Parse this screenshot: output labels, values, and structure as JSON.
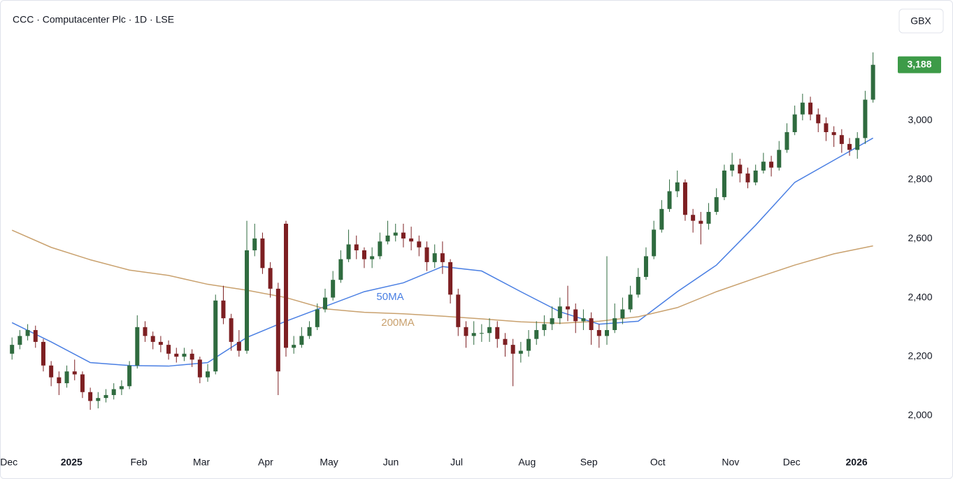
{
  "chart_data": {
    "type": "candlestick",
    "title": "CCC · Computacenter Plc · 1D · LSE",
    "currency": "GBX",
    "up_color": "#2f6b3f",
    "down_color": "#7d1f22",
    "open": [
      2210,
      2240,
      2270,
      2290,
      2250,
      2170,
      2130,
      2110,
      2150,
      2140,
      2080,
      2050,
      2060,
      2070,
      2090,
      2100,
      2170,
      2300,
      2270,
      2250,
      2240,
      2210,
      2200,
      2210,
      2190,
      2130,
      2150,
      2390,
      2330,
      2250,
      2220,
      2560,
      2600,
      2500,
      2430,
      2650,
      2230,
      2240,
      2270,
      2300,
      2360,
      2400,
      2460,
      2530,
      2580,
      2560,
      2530,
      2540,
      2590,
      2610,
      2620,
      2600,
      2590,
      2570,
      2520,
      2550,
      2520,
      2410,
      2300,
      2270,
      2280,
      2280,
      2300,
      2260,
      2240,
      2210,
      2220,
      2260,
      2290,
      2310,
      2330,
      2370,
      2360,
      2320,
      2330,
      2290,
      2270,
      2290,
      2330,
      2360,
      2410,
      2470,
      2540,
      2630,
      2700,
      2760,
      2790,
      2680,
      2660,
      2650,
      2690,
      2740,
      2830,
      2850,
      2820,
      2790,
      2830,
      2860,
      2840,
      2900,
      2960,
      3020,
      3060,
      3020,
      2990,
      2960,
      2950,
      2920,
      2900,
      2940,
      3070
    ],
    "high": [
      2265,
      2290,
      2310,
      2305,
      2260,
      2185,
      2150,
      2170,
      2190,
      2150,
      2095,
      2080,
      2090,
      2110,
      2120,
      2185,
      2340,
      2320,
      2285,
      2270,
      2255,
      2230,
      2230,
      2225,
      2200,
      2175,
      2410,
      2440,
      2345,
      2290,
      2660,
      2650,
      2620,
      2520,
      2450,
      2660,
      2270,
      2300,
      2320,
      2380,
      2430,
      2490,
      2560,
      2630,
      2610,
      2570,
      2570,
      2620,
      2660,
      2650,
      2650,
      2640,
      2610,
      2590,
      2580,
      2590,
      2530,
      2430,
      2320,
      2320,
      2310,
      2330,
      2320,
      2280,
      2260,
      2250,
      2290,
      2320,
      2340,
      2370,
      2400,
      2440,
      2380,
      2360,
      2350,
      2310,
      2540,
      2380,
      2400,
      2440,
      2500,
      2570,
      2660,
      2730,
      2800,
      2830,
      2800,
      2700,
      2690,
      2720,
      2770,
      2850,
      2890,
      2870,
      2840,
      2850,
      2890,
      2880,
      2930,
      2990,
      3050,
      3090,
      3080,
      3040,
      3010,
      2980,
      2970,
      2940,
      2960,
      3100,
      3230
    ],
    "low": [
      2190,
      2225,
      2255,
      2230,
      2150,
      2100,
      2070,
      2095,
      2120,
      2060,
      2020,
      2025,
      2045,
      2055,
      2070,
      2090,
      2160,
      2250,
      2225,
      2215,
      2190,
      2180,
      2185,
      2165,
      2110,
      2115,
      2140,
      2310,
      2220,
      2200,
      2210,
      2540,
      2480,
      2400,
      2070,
      2200,
      2210,
      2230,
      2260,
      2290,
      2350,
      2390,
      2450,
      2520,
      2530,
      2500,
      2500,
      2530,
      2580,
      2590,
      2570,
      2560,
      2540,
      2490,
      2500,
      2480,
      2380,
      2270,
      2230,
      2240,
      2250,
      2250,
      2230,
      2200,
      2100,
      2180,
      2200,
      2240,
      2270,
      2290,
      2310,
      2320,
      2280,
      2290,
      2240,
      2230,
      2240,
      2280,
      2310,
      2350,
      2400,
      2460,
      2530,
      2620,
      2690,
      2740,
      2660,
      2620,
      2580,
      2630,
      2680,
      2730,
      2810,
      2790,
      2770,
      2780,
      2820,
      2810,
      2830,
      2890,
      2950,
      3000,
      3000,
      2960,
      2930,
      2910,
      2890,
      2880,
      2870,
      2920,
      3060
    ],
    "close": [
      2240,
      2270,
      2290,
      2250,
      2170,
      2130,
      2110,
      2150,
      2140,
      2080,
      2050,
      2060,
      2070,
      2090,
      2100,
      2170,
      2300,
      2270,
      2250,
      2240,
      2210,
      2200,
      2210,
      2190,
      2130,
      2150,
      2390,
      2330,
      2250,
      2220,
      2560,
      2600,
      2500,
      2430,
      2150,
      2230,
      2240,
      2270,
      2300,
      2360,
      2400,
      2460,
      2530,
      2580,
      2560,
      2530,
      2540,
      2590,
      2610,
      2620,
      2600,
      2590,
      2570,
      2520,
      2550,
      2520,
      2410,
      2300,
      2270,
      2280,
      2280,
      2300,
      2260,
      2240,
      2210,
      2220,
      2260,
      2290,
      2310,
      2330,
      2370,
      2360,
      2320,
      2330,
      2290,
      2270,
      2290,
      2330,
      2360,
      2410,
      2470,
      2540,
      2630,
      2700,
      2760,
      2790,
      2680,
      2660,
      2650,
      2690,
      2740,
      2830,
      2850,
      2820,
      2790,
      2830,
      2860,
      2840,
      2900,
      2960,
      3020,
      3060,
      3020,
      2990,
      2960,
      2950,
      2920,
      2900,
      2940,
      3070,
      3188
    ],
    "overlays": [
      {
        "name": "50MA",
        "color": "#4a7fe3",
        "x": [
          0,
          5,
          10,
          15,
          20,
          25,
          30,
          35,
          40,
          45,
          50,
          55,
          60,
          65,
          70,
          75,
          80,
          85,
          90,
          95,
          100,
          105,
          110
        ],
        "values": [
          2315,
          2250,
          2180,
          2170,
          2168,
          2180,
          2265,
          2320,
          2370,
          2420,
          2450,
          2505,
          2490,
          2420,
          2352,
          2310,
          2320,
          2420,
          2510,
          2645,
          2790,
          2865,
          2940
        ]
      },
      {
        "name": "200MA",
        "color": "#c9a16e",
        "x": [
          0,
          5,
          10,
          15,
          20,
          25,
          30,
          35,
          40,
          45,
          50,
          55,
          60,
          65,
          70,
          75,
          80,
          85,
          90,
          95,
          100,
          105,
          110
        ],
        "values": [
          2628,
          2570,
          2528,
          2493,
          2475,
          2445,
          2425,
          2400,
          2362,
          2350,
          2345,
          2337,
          2328,
          2318,
          2313,
          2320,
          2335,
          2366,
          2420,
          2466,
          2510,
          2548,
          2575
        ]
      }
    ],
    "last_price": {
      "value": 3188,
      "label": "3,188"
    },
    "last_color": "#3d9b48",
    "xlim": [
      -1,
      112
    ],
    "xticks": [
      {
        "value": -0.4,
        "label": "Dec"
      },
      {
        "value": 7.6,
        "label": "2025"
      },
      {
        "value": 16.2,
        "label": "Feb"
      },
      {
        "value": 24.2,
        "label": "Mar"
      },
      {
        "value": 32.4,
        "label": "Apr"
      },
      {
        "value": 40.5,
        "label": "May"
      },
      {
        "value": 48.4,
        "label": "Jun"
      },
      {
        "value": 56.8,
        "label": "Jul"
      },
      {
        "value": 65.8,
        "label": "Aug"
      },
      {
        "value": 73.7,
        "label": "Sep"
      },
      {
        "value": 82.5,
        "label": "Oct"
      },
      {
        "value": 91.8,
        "label": "Nov"
      },
      {
        "value": 99.6,
        "label": "Dec"
      },
      {
        "value": 107.9,
        "label": "2026"
      }
    ],
    "ylim": [
      1890,
      3405
    ],
    "yticks": [
      {
        "value": 2000,
        "label": "2,000"
      },
      {
        "value": 2200,
        "label": "2,200"
      },
      {
        "value": 2400,
        "label": "2,400"
      },
      {
        "value": 2600,
        "label": "2,600"
      },
      {
        "value": 2800,
        "label": "2,800"
      },
      {
        "value": 3000,
        "label": "3,000"
      }
    ]
  }
}
